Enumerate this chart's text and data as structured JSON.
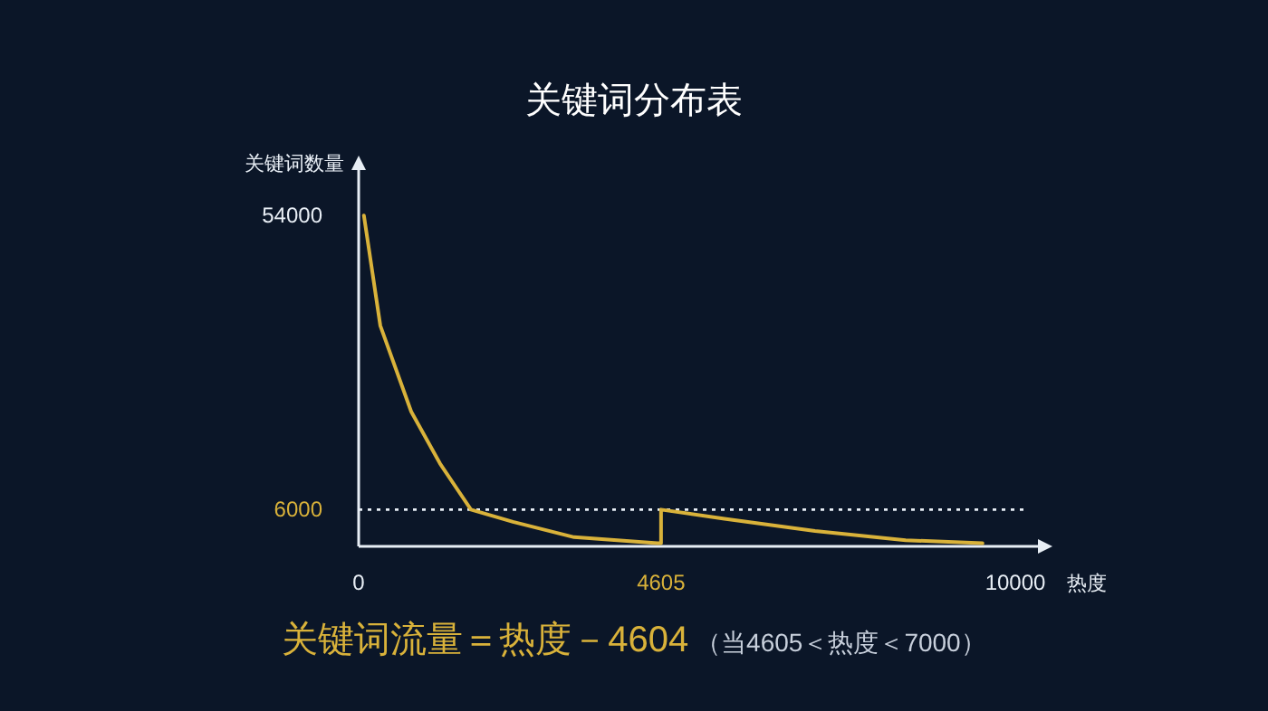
{
  "chart_data": {
    "type": "line",
    "title": "关键词分布表",
    "xlabel": "热度",
    "ylabel": "关键词数量",
    "series": [
      {
        "color": "#d9b23a",
        "x": [
          80,
          330,
          800,
          1240,
          1710,
          2350,
          3280,
          4550,
          4605,
          4605,
          5570,
          6950,
          8330,
          9500
        ],
        "values": [
          54000,
          36000,
          22000,
          13500,
          6000,
          4000,
          1500,
          500,
          500,
          6000,
          4500,
          2500,
          1000,
          500
        ]
      }
    ],
    "xlim": [
      0,
      10400
    ],
    "ylim": [
      0,
      62000
    ],
    "xticks": [
      0,
      4605,
      10000
    ],
    "yticks": [
      6000,
      54000
    ],
    "ref_lines": [
      {
        "axis": "y",
        "value": 6000,
        "color": "#e8eef5",
        "line_style": "dotted"
      }
    ],
    "line_style": "solid",
    "annotations": [
      "关键词流量＝热度－4604",
      "（当4605＜热度＜7000）"
    ]
  }
}
